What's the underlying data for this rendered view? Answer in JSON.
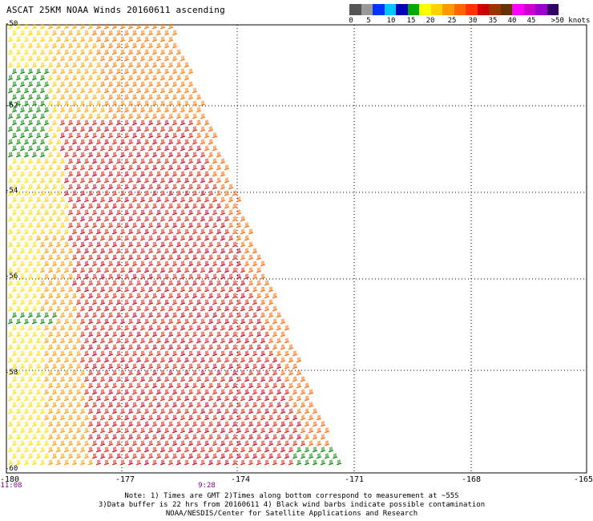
{
  "title": "ASCAT 25KM NOAA Winds 20160611 ascending",
  "legend": {
    "colors": [
      "#555555",
      "#999999",
      "#0033ff",
      "#00c6ff",
      "#0000bb",
      "#00aa00",
      "#ffff00",
      "#ffd200",
      "#ff9900",
      "#ff6600",
      "#ff3300",
      "#cc0000",
      "#993300",
      "#663300",
      "#ff00ff",
      "#cc00cc",
      "#9900cc",
      "#330066"
    ],
    "labels": [
      "0",
      "5",
      "10",
      "15",
      "20",
      "25",
      "30",
      "35",
      "40",
      "45",
      ">50 knots"
    ]
  },
  "latitudes": [
    "-50",
    "-52",
    "-54",
    "-56",
    "-58",
    "-60"
  ],
  "longitudes": [
    "-180",
    "-177",
    "-174",
    "-171",
    "-168",
    "-165"
  ],
  "times": [
    "11:08",
    "9:28"
  ],
  "notes": [
    "Note: 1) Times are GMT 2)Times along bottom correspond to measurement at ~55S",
    "3)Data buffer is 22 hrs from 20160611 4) Black wind barbs indicate possible contamination",
    "NOAA/NESDIS/Center for Satellite Applications and Research"
  ]
}
